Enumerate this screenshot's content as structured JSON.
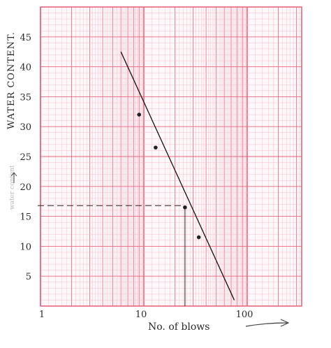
{
  "chart_data": {
    "type": "scatter",
    "title": "",
    "ylabel": "WATER CONTENT.",
    "ylabel_faint": "water content",
    "xlabel": "No. of blows",
    "x_scale": "log",
    "xlim": [
      1,
      300
    ],
    "ylim": [
      0,
      50
    ],
    "x_ticks": [
      {
        "value": 1,
        "label": "1"
      },
      {
        "value": 10,
        "label": "10"
      },
      {
        "value": 100,
        "label": "100"
      }
    ],
    "y_ticks": [
      {
        "value": 5,
        "label": "5"
      },
      {
        "value": 10,
        "label": "10"
      },
      {
        "value": 15,
        "label": "15"
      },
      {
        "value": 20,
        "label": "20"
      },
      {
        "value": 25,
        "label": "25"
      },
      {
        "value": 30,
        "label": "30"
      },
      {
        "value": 35,
        "label": "35"
      },
      {
        "value": 40,
        "label": "40"
      },
      {
        "value": 45,
        "label": "45"
      }
    ],
    "points": [
      {
        "x": 9,
        "y": 32
      },
      {
        "x": 13,
        "y": 26.5
      },
      {
        "x": 25,
        "y": 16.5
      },
      {
        "x": 34,
        "y": 11.5
      }
    ],
    "fit_line": {
      "x": [
        6,
        75
      ],
      "y": [
        42.5,
        1
      ]
    },
    "reference": {
      "x": 25,
      "y": 16.8
    },
    "grid": true,
    "grid_color": "#e8667e",
    "grid_minor_color": "#f6b9c5",
    "line_color": "#111111"
  }
}
